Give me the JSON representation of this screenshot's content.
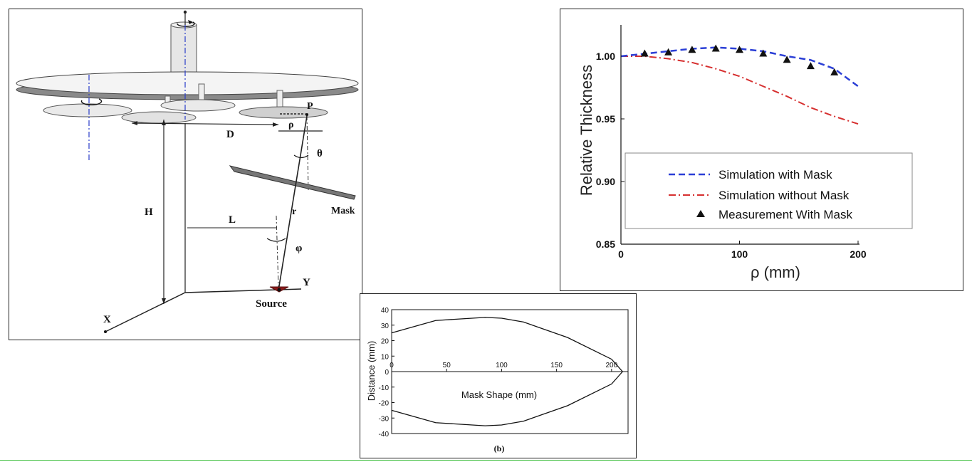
{
  "figure_a": {
    "labels": {
      "p": "P",
      "d": "D",
      "rho": "ρ",
      "theta": "θ",
      "mask": "Mask",
      "h": "H",
      "l": "L",
      "r": "r",
      "phi": "φ",
      "y": "Y",
      "x": "X",
      "source": "Source"
    }
  },
  "figure_b": {
    "caption": "(b)",
    "chart_data": {
      "type": "line",
      "xlabel": "Mask Shape (mm)",
      "ylabel": "Distance (mm)",
      "xlim": [
        0,
        215
      ],
      "ylim": [
        -40,
        40
      ],
      "xticks": [
        "0",
        "50",
        "100",
        "150",
        "200"
      ],
      "yticks": [
        "40",
        "30",
        "20",
        "10",
        "0",
        "-10",
        "-20",
        "-30",
        "-40"
      ],
      "series": [
        {
          "x": [
            0,
            40,
            85,
            100,
            120,
            160,
            200,
            210
          ],
          "y": [
            25,
            33,
            35,
            34.5,
            32,
            22,
            8,
            0
          ]
        },
        {
          "x": [
            0,
            40,
            85,
            100,
            120,
            160,
            200,
            210
          ],
          "y": [
            -25,
            -33,
            -35,
            -34.5,
            -32,
            -22,
            -8,
            0
          ]
        }
      ]
    }
  },
  "figure_c": {
    "chart_data": {
      "type": "line",
      "xlabel": "ρ (mm)",
      "ylabel": "Relative Thickness",
      "xlim": [
        0,
        200
      ],
      "ylim": [
        0.85,
        1.025
      ],
      "xticks": [
        "0",
        "100",
        "200"
      ],
      "yticks": [
        "0.85",
        "0.90",
        "0.95",
        "1.00"
      ],
      "legend_position": "bottom-center",
      "colors": {
        "with_mask": "#2b3fd6",
        "without_mask": "#d62f2f",
        "measurement": "#111111"
      },
      "series": [
        {
          "name": "Simulation with Mask",
          "style": "dashed",
          "x": [
            0,
            20,
            40,
            60,
            80,
            100,
            120,
            140,
            160,
            180,
            200
          ],
          "y": [
            1.0,
            1.002,
            1.004,
            1.006,
            1.007,
            1.006,
            1.004,
            1.0,
            0.997,
            0.99,
            0.976
          ]
        },
        {
          "name": "Simulation without Mask",
          "style": "dash-dot",
          "x": [
            0,
            20,
            40,
            60,
            80,
            100,
            120,
            140,
            160,
            180,
            200
          ],
          "y": [
            1.0,
            1.0,
            0.998,
            0.995,
            0.99,
            0.984,
            0.976,
            0.968,
            0.959,
            0.952,
            0.946
          ]
        },
        {
          "name": "Measurement With Mask",
          "style": "triangles",
          "x": [
            20,
            40,
            60,
            80,
            100,
            120,
            140,
            160,
            180
          ],
          "y": [
            1.002,
            1.003,
            1.005,
            1.006,
            1.005,
            1.002,
            0.997,
            0.992,
            0.987
          ]
        }
      ]
    }
  }
}
